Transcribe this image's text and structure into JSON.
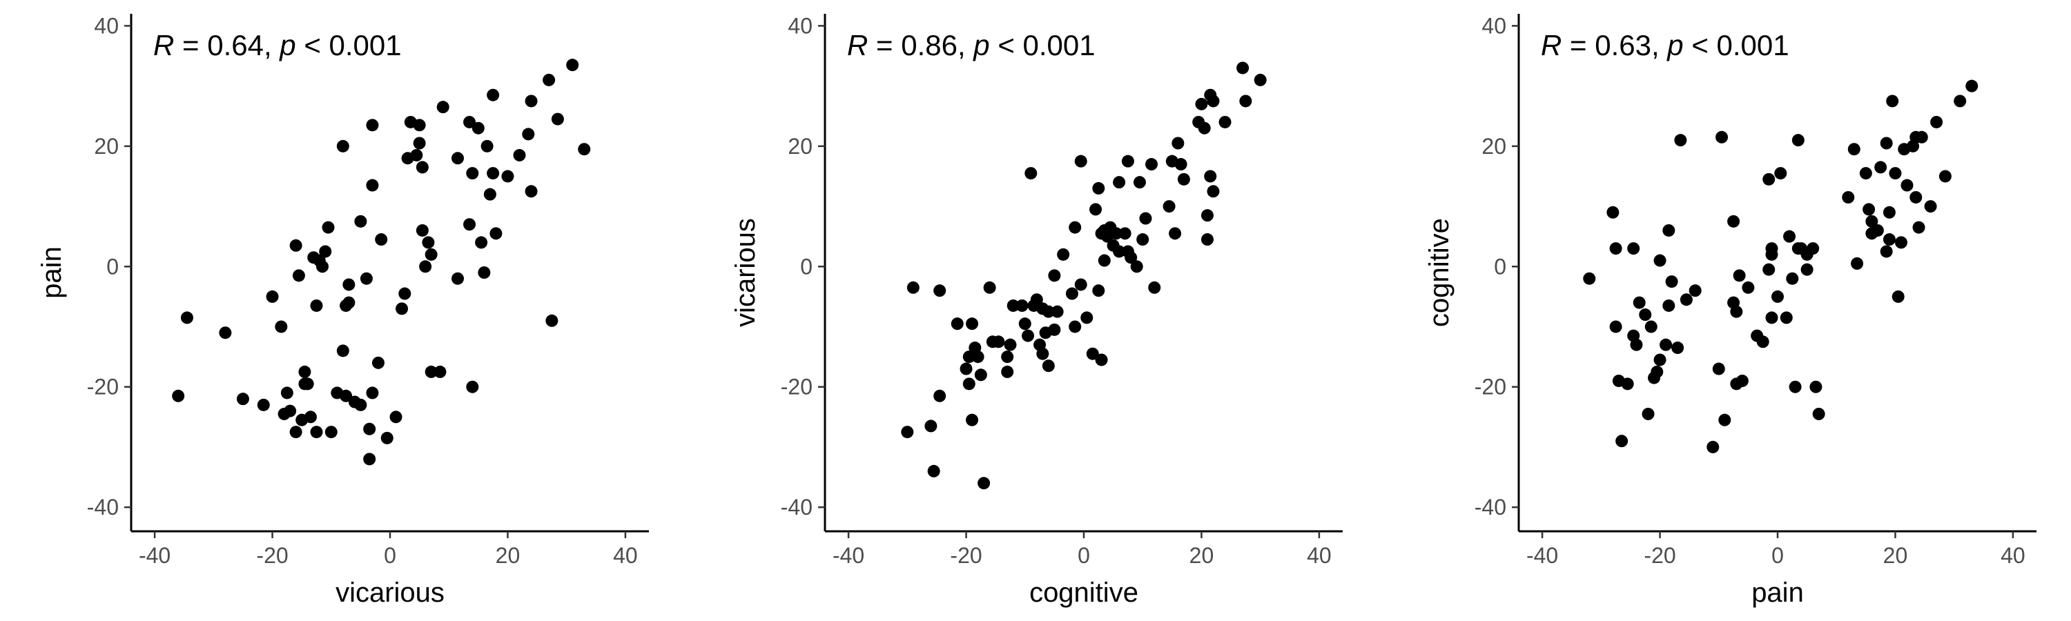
{
  "chart_data": [
    {
      "type": "scatter",
      "xlabel": "vicarious",
      "ylabel": "pain",
      "xlim": [
        -44,
        44
      ],
      "ylim": [
        -44,
        42
      ],
      "xticks": [
        -40,
        -20,
        0,
        20,
        40
      ],
      "yticks": [
        -40,
        -20,
        0,
        20,
        40
      ],
      "tick_labels_x": [
        "-40",
        "-20",
        "0",
        "20",
        "40"
      ],
      "tick_labels_y": [
        "-40",
        "-20",
        "0",
        "20",
        "40"
      ],
      "grid": false,
      "annotation": {
        "r_label": "R",
        "r_text": " = 0.64, ",
        "p_label": "p",
        "p_text": " < 0.001"
      },
      "points": [
        [
          -36,
          -21.5
        ],
        [
          -34.5,
          -8.5
        ],
        [
          -28,
          -11
        ],
        [
          -25,
          -22
        ],
        [
          -21.5,
          -23
        ],
        [
          -20,
          -5
        ],
        [
          -18.5,
          -10
        ],
        [
          -18,
          -24.5
        ],
        [
          -17.5,
          -21
        ],
        [
          -17,
          -24
        ],
        [
          -16,
          3.5
        ],
        [
          -16,
          -27.5
        ],
        [
          -15.5,
          -1.5
        ],
        [
          -15,
          -25.5
        ],
        [
          -14.5,
          -19.5
        ],
        [
          -14.5,
          -17.5
        ],
        [
          -14,
          -19.5
        ],
        [
          -13.5,
          -25
        ],
        [
          -13,
          1.5
        ],
        [
          -12.5,
          -6.5
        ],
        [
          -12.5,
          -27.5
        ],
        [
          -12,
          1
        ],
        [
          -11.5,
          0
        ],
        [
          -11,
          2.5
        ],
        [
          -10.5,
          6.5
        ],
        [
          -10,
          -27.5
        ],
        [
          -9,
          -21
        ],
        [
          -8,
          20
        ],
        [
          -8,
          -14
        ],
        [
          -7.5,
          -6.5
        ],
        [
          -7.5,
          -21.5
        ],
        [
          -7,
          -6
        ],
        [
          -7,
          -3
        ],
        [
          -6,
          -22.5
        ],
        [
          -5,
          -23
        ],
        [
          -5,
          7.5
        ],
        [
          -4,
          -2
        ],
        [
          -3.5,
          -32
        ],
        [
          -3.5,
          -27
        ],
        [
          -3,
          23.5
        ],
        [
          -3,
          13.5
        ],
        [
          -3,
          -21
        ],
        [
          -2,
          -16
        ],
        [
          -1.5,
          4.5
        ],
        [
          -0.5,
          -28.5
        ],
        [
          1,
          -25
        ],
        [
          2,
          -7
        ],
        [
          2.5,
          -4.5
        ],
        [
          3,
          18
        ],
        [
          3.5,
          24
        ],
        [
          4.5,
          18.5
        ],
        [
          5,
          23.5
        ],
        [
          5,
          20.5
        ],
        [
          5.5,
          16.5
        ],
        [
          5.5,
          6
        ],
        [
          6,
          0
        ],
        [
          6.5,
          4
        ],
        [
          7,
          2
        ],
        [
          7,
          -17.5
        ],
        [
          8.5,
          -17.5
        ],
        [
          9,
          26.5
        ],
        [
          11.5,
          18
        ],
        [
          11.5,
          -2
        ],
        [
          13.5,
          7
        ],
        [
          13.5,
          24
        ],
        [
          14,
          15.5
        ],
        [
          14,
          -20
        ],
        [
          15,
          23
        ],
        [
          15.5,
          4
        ],
        [
          16,
          -1
        ],
        [
          16.5,
          20
        ],
        [
          17,
          12
        ],
        [
          17.5,
          28.5
        ],
        [
          17.5,
          15.5
        ],
        [
          18,
          5.5
        ],
        [
          20,
          15
        ],
        [
          22,
          18.5
        ],
        [
          23.5,
          22
        ],
        [
          24,
          27.5
        ],
        [
          24,
          12.5
        ],
        [
          27,
          31
        ],
        [
          27.5,
          -9
        ],
        [
          28.5,
          24.5
        ],
        [
          31,
          33.5
        ],
        [
          33,
          19.5
        ]
      ]
    },
    {
      "type": "scatter",
      "xlabel": "cognitive",
      "ylabel": "vicarious",
      "xlim": [
        -44,
        44
      ],
      "ylim": [
        -44,
        42
      ],
      "xticks": [
        -40,
        -20,
        0,
        20,
        40
      ],
      "yticks": [
        -40,
        -20,
        0,
        20,
        40
      ],
      "tick_labels_x": [
        "-40",
        "-20",
        "0",
        "20",
        "40"
      ],
      "tick_labels_y": [
        "-40",
        "-20",
        "0",
        "20",
        "40"
      ],
      "grid": false,
      "annotation": {
        "r_label": "R",
        "r_text": " = 0.86, ",
        "p_label": "p",
        "p_text": " < 0.001"
      },
      "points": [
        [
          -30,
          -27.5
        ],
        [
          -29,
          -3.5
        ],
        [
          -26,
          -26.5
        ],
        [
          -25.5,
          -34
        ],
        [
          -24.5,
          -4
        ],
        [
          -24.5,
          -21.5
        ],
        [
          -21.5,
          -9.5
        ],
        [
          -20,
          -17
        ],
        [
          -19.5,
          -15
        ],
        [
          -19.5,
          -19.5
        ],
        [
          -19,
          -9.5
        ],
        [
          -19,
          -25.5
        ],
        [
          -18.5,
          -13.5
        ],
        [
          -18,
          -15
        ],
        [
          -17.5,
          -18
        ],
        [
          -17,
          -36
        ],
        [
          -16,
          -3.5
        ],
        [
          -15.5,
          -12.5
        ],
        [
          -14.5,
          -12.5
        ],
        [
          -13,
          -17.5
        ],
        [
          -13,
          -15
        ],
        [
          -12.5,
          -13
        ],
        [
          -12,
          -6.5
        ],
        [
          -10.5,
          -6.5
        ],
        [
          -10,
          -9.5
        ],
        [
          -9.5,
          -11.5
        ],
        [
          -9,
          15.5
        ],
        [
          -8.5,
          -6.5
        ],
        [
          -8,
          -5.5
        ],
        [
          -7.5,
          -13
        ],
        [
          -7,
          -14.5
        ],
        [
          -7,
          -7
        ],
        [
          -6.5,
          -11
        ],
        [
          -6,
          -16.5
        ],
        [
          -6,
          -7.5
        ],
        [
          -5,
          -1.5
        ],
        [
          -5,
          -10.5
        ],
        [
          -4.5,
          -7.5
        ],
        [
          -3.5,
          2
        ],
        [
          -2,
          -4.5
        ],
        [
          -1.5,
          -10
        ],
        [
          -1.5,
          6.5
        ],
        [
          -0.5,
          17.5
        ],
        [
          -0.5,
          -3
        ],
        [
          0.5,
          -8.5
        ],
        [
          1.5,
          -14.5
        ],
        [
          2,
          9.5
        ],
        [
          2.5,
          -4
        ],
        [
          2.5,
          13
        ],
        [
          3,
          5.5
        ],
        [
          3,
          -15.5
        ],
        [
          3.5,
          1
        ],
        [
          3.5,
          6
        ],
        [
          4,
          5
        ],
        [
          4.5,
          6.5
        ],
        [
          5,
          3.5
        ],
        [
          5.5,
          5.5
        ],
        [
          6,
          14
        ],
        [
          6,
          2.5
        ],
        [
          7,
          5.5
        ],
        [
          7.5,
          2.5
        ],
        [
          7.5,
          17.5
        ],
        [
          8,
          1.5
        ],
        [
          9,
          0
        ],
        [
          9.5,
          14
        ],
        [
          10,
          4.5
        ],
        [
          10.5,
          8
        ],
        [
          11.5,
          17
        ],
        [
          12,
          -3.5
        ],
        [
          14.5,
          10
        ],
        [
          15,
          17.5
        ],
        [
          15.5,
          5.5
        ],
        [
          16,
          20.5
        ],
        [
          16.5,
          17
        ],
        [
          17,
          14.5
        ],
        [
          19.5,
          24
        ],
        [
          20,
          27
        ],
        [
          20.5,
          23
        ],
        [
          21,
          8.5
        ],
        [
          21,
          4.5
        ],
        [
          21.5,
          15
        ],
        [
          21.5,
          28.5
        ],
        [
          22,
          27.5
        ],
        [
          22,
          12.5
        ],
        [
          24,
          24
        ],
        [
          27,
          33
        ],
        [
          27.5,
          27.5
        ],
        [
          30,
          31
        ]
      ]
    },
    {
      "type": "scatter",
      "xlabel": "pain",
      "ylabel": "cognitive",
      "xlim": [
        -44,
        44
      ],
      "ylim": [
        -44,
        42
      ],
      "xticks": [
        -40,
        -20,
        0,
        20,
        40
      ],
      "yticks": [
        -40,
        -20,
        0,
        20,
        40
      ],
      "tick_labels_x": [
        "-40",
        "-20",
        "0",
        "20",
        "40"
      ],
      "tick_labels_y": [
        "-40",
        "-20",
        "0",
        "20",
        "40"
      ],
      "grid": false,
      "annotation": {
        "r_label": "R",
        "r_text": " = 0.63, ",
        "p_label": "p",
        "p_text": " < 0.001"
      },
      "points": [
        [
          -32,
          -2
        ],
        [
          -28,
          9
        ],
        [
          -27.5,
          3
        ],
        [
          -27.5,
          -10
        ],
        [
          -27,
          -19
        ],
        [
          -26.5,
          -29
        ],
        [
          -25.5,
          -19.5
        ],
        [
          -24.5,
          -11.5
        ],
        [
          -24.5,
          3
        ],
        [
          -24,
          -13
        ],
        [
          -23.5,
          -6
        ],
        [
          -22.5,
          -8
        ],
        [
          -22,
          -24.5
        ],
        [
          -21.5,
          -10
        ],
        [
          -21,
          -18.5
        ],
        [
          -20.5,
          -17.5
        ],
        [
          -20,
          -15.5
        ],
        [
          -20,
          1
        ],
        [
          -19,
          -13
        ],
        [
          -18.5,
          -6.5
        ],
        [
          -18.5,
          6
        ],
        [
          -18,
          -2.5
        ],
        [
          -17,
          -13.5
        ],
        [
          -16.5,
          21
        ],
        [
          -15.5,
          -5.5
        ],
        [
          -14,
          -4
        ],
        [
          -11,
          -30
        ],
        [
          -10,
          -17
        ],
        [
          -9.5,
          21.5
        ],
        [
          -9,
          -25.5
        ],
        [
          -7.5,
          -6
        ],
        [
          -7.5,
          7.5
        ],
        [
          -7,
          -19.5
        ],
        [
          -7,
          -7.5
        ],
        [
          -6.5,
          -1.5
        ],
        [
          -6,
          -19
        ],
        [
          -5,
          -3.5
        ],
        [
          -3.5,
          -11.5
        ],
        [
          -2.5,
          -12.5
        ],
        [
          -1.5,
          -0.5
        ],
        [
          -1.5,
          14.5
        ],
        [
          -1,
          -8.5
        ],
        [
          -1,
          2
        ],
        [
          -1,
          3
        ],
        [
          0,
          -5
        ],
        [
          0.5,
          15.5
        ],
        [
          1.5,
          -8.5
        ],
        [
          2,
          5
        ],
        [
          2.5,
          -2
        ],
        [
          3,
          -20
        ],
        [
          3.5,
          21
        ],
        [
          3.5,
          3
        ],
        [
          4,
          3
        ],
        [
          5,
          2
        ],
        [
          5,
          -0.5
        ],
        [
          6,
          3
        ],
        [
          6.5,
          -20
        ],
        [
          7,
          -24.5
        ],
        [
          12,
          11.5
        ],
        [
          13,
          19.5
        ],
        [
          13.5,
          0.5
        ],
        [
          15,
          15.5
        ],
        [
          15.5,
          9.5
        ],
        [
          16,
          5.5
        ],
        [
          16,
          7.5
        ],
        [
          17,
          6
        ],
        [
          17.5,
          16.5
        ],
        [
          18.5,
          2.5
        ],
        [
          18.5,
          20.5
        ],
        [
          19,
          9
        ],
        [
          19,
          4.5
        ],
        [
          19.5,
          27.5
        ],
        [
          20,
          15.5
        ],
        [
          20.5,
          -5
        ],
        [
          21,
          4
        ],
        [
          21.5,
          19.5
        ],
        [
          22,
          13.5
        ],
        [
          23,
          20
        ],
        [
          23.5,
          21.5
        ],
        [
          23.5,
          11.5
        ],
        [
          24,
          6.5
        ],
        [
          24.5,
          21.5
        ],
        [
          26,
          10
        ],
        [
          27,
          24
        ],
        [
          28.5,
          15
        ],
        [
          31,
          27.5
        ],
        [
          33,
          30
        ]
      ]
    }
  ]
}
